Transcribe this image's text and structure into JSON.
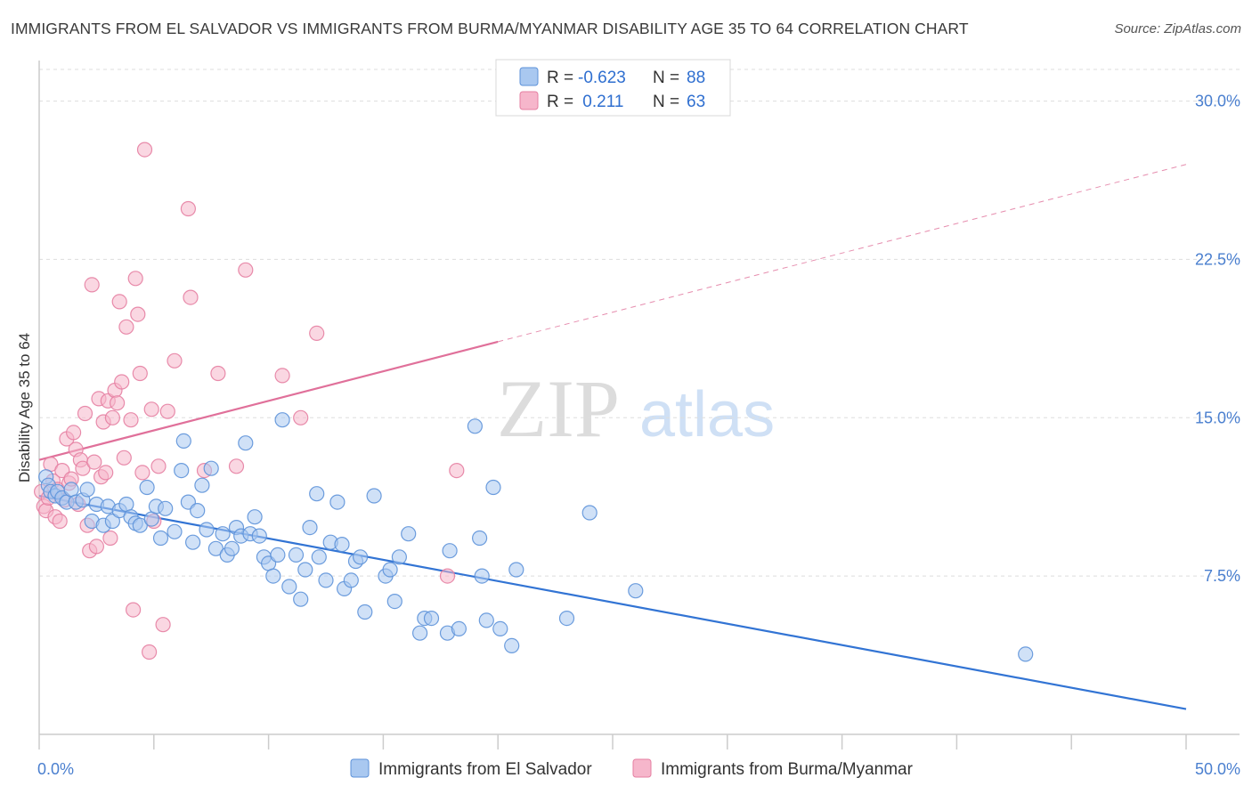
{
  "title": "IMMIGRANTS FROM EL SALVADOR VS IMMIGRANTS FROM BURMA/MYANMAR DISABILITY AGE 35 TO 64 CORRELATION CHART",
  "source": "Source: ZipAtlas.com",
  "watermark": {
    "zip": "ZIP",
    "atlas": "atlas"
  },
  "legend": {
    "rows": [
      {
        "r_label": "R =",
        "r_value": "-0.623",
        "n_label": "N =",
        "n_value": "88"
      },
      {
        "r_label": "R =",
        "r_value": " 0.211",
        "n_label": "N =",
        "n_value": "63"
      }
    ]
  },
  "colors": {
    "blue_fill": "#a9c8f0",
    "blue_stroke": "#5d92d9",
    "blue_line": "#3274d4",
    "pink_fill": "#f6b6cb",
    "pink_stroke": "#e57fa2",
    "pink_line": "#e0709a",
    "tick_label": "#4a7fcf",
    "grid": "#dddddd"
  },
  "chart_data": {
    "type": "scatter",
    "ylabel": "Disability Age 35 to 64",
    "xlim": [
      0,
      50
    ],
    "ylim": [
      0,
      31.5
    ],
    "x_tick_labels": [
      "0.0%",
      "50.0%"
    ],
    "y_ticks": [
      7.5,
      15.0,
      22.5,
      30.0
    ],
    "y_tick_labels": [
      "7.5%",
      "15.0%",
      "22.5%",
      "30.0%"
    ],
    "grid": true,
    "legend_position": "top-center",
    "series": [
      {
        "name": "Immigrants from El Salvador",
        "color": "#a9c8f0",
        "trend": {
          "x0": 0,
          "y0": 11.3,
          "x1": 50,
          "y1": 1.2,
          "dashed_from": null
        },
        "points": [
          [
            0.3,
            12.2
          ],
          [
            0.4,
            11.8
          ],
          [
            0.5,
            11.5
          ],
          [
            0.7,
            11.3
          ],
          [
            0.8,
            11.5
          ],
          [
            1.0,
            11.2
          ],
          [
            1.2,
            11.0
          ],
          [
            1.4,
            11.6
          ],
          [
            1.6,
            11.0
          ],
          [
            1.9,
            11.1
          ],
          [
            2.1,
            11.6
          ],
          [
            2.3,
            10.1
          ],
          [
            2.5,
            10.9
          ],
          [
            2.8,
            9.9
          ],
          [
            3.0,
            10.8
          ],
          [
            3.2,
            10.1
          ],
          [
            3.5,
            10.6
          ],
          [
            3.8,
            10.9
          ],
          [
            4.0,
            10.3
          ],
          [
            4.2,
            10.0
          ],
          [
            4.4,
            9.9
          ],
          [
            4.7,
            11.7
          ],
          [
            4.9,
            10.2
          ],
          [
            5.1,
            10.8
          ],
          [
            5.3,
            9.3
          ],
          [
            5.5,
            10.7
          ],
          [
            5.9,
            9.6
          ],
          [
            6.2,
            12.5
          ],
          [
            6.3,
            13.9
          ],
          [
            6.5,
            11.0
          ],
          [
            6.7,
            9.1
          ],
          [
            6.9,
            10.6
          ],
          [
            7.1,
            11.8
          ],
          [
            7.3,
            9.7
          ],
          [
            7.5,
            12.6
          ],
          [
            7.7,
            8.8
          ],
          [
            8.0,
            9.5
          ],
          [
            8.2,
            8.5
          ],
          [
            8.4,
            8.8
          ],
          [
            8.6,
            9.8
          ],
          [
            8.8,
            9.4
          ],
          [
            9.0,
            13.8
          ],
          [
            9.2,
            9.5
          ],
          [
            9.4,
            10.3
          ],
          [
            9.6,
            9.4
          ],
          [
            9.8,
            8.4
          ],
          [
            10.0,
            8.1
          ],
          [
            10.2,
            7.5
          ],
          [
            10.4,
            8.5
          ],
          [
            10.6,
            14.9
          ],
          [
            10.9,
            7.0
          ],
          [
            11.2,
            8.5
          ],
          [
            11.4,
            6.4
          ],
          [
            11.6,
            7.8
          ],
          [
            11.8,
            9.8
          ],
          [
            12.1,
            11.4
          ],
          [
            12.2,
            8.4
          ],
          [
            12.5,
            7.3
          ],
          [
            12.7,
            9.1
          ],
          [
            13.0,
            11.0
          ],
          [
            13.2,
            9.0
          ],
          [
            13.3,
            6.9
          ],
          [
            13.6,
            7.3
          ],
          [
            13.8,
            8.2
          ],
          [
            14.0,
            8.4
          ],
          [
            14.2,
            5.8
          ],
          [
            14.6,
            11.3
          ],
          [
            15.1,
            7.5
          ],
          [
            15.3,
            7.8
          ],
          [
            15.5,
            6.3
          ],
          [
            15.7,
            8.4
          ],
          [
            16.1,
            9.5
          ],
          [
            16.6,
            4.8
          ],
          [
            16.8,
            5.5
          ],
          [
            17.1,
            5.5
          ],
          [
            17.8,
            4.8
          ],
          [
            17.9,
            8.7
          ],
          [
            18.3,
            5.0
          ],
          [
            19.0,
            14.6
          ],
          [
            19.2,
            9.3
          ],
          [
            19.3,
            7.5
          ],
          [
            19.5,
            5.4
          ],
          [
            19.8,
            11.7
          ],
          [
            20.1,
            5.0
          ],
          [
            20.6,
            4.2
          ],
          [
            20.8,
            7.8
          ],
          [
            23.0,
            5.5
          ],
          [
            24.0,
            10.5
          ],
          [
            26.0,
            6.8
          ],
          [
            43.0,
            3.8
          ]
        ]
      },
      {
        "name": "Immigrants from Burma/Myanmar",
        "color": "#f6b6cb",
        "trend": {
          "x0": 0,
          "y0": 13.0,
          "x1": 50,
          "y1": 27.0,
          "dashed_from": 20
        },
        "points": [
          [
            0.1,
            11.5
          ],
          [
            0.2,
            10.8
          ],
          [
            0.3,
            10.6
          ],
          [
            0.4,
            11.2
          ],
          [
            0.5,
            12.8
          ],
          [
            0.6,
            12.0
          ],
          [
            0.7,
            10.3
          ],
          [
            0.8,
            11.6
          ],
          [
            0.9,
            10.1
          ],
          [
            1.0,
            12.5
          ],
          [
            1.1,
            11.1
          ],
          [
            1.2,
            14.0
          ],
          [
            1.3,
            11.9
          ],
          [
            1.4,
            12.1
          ],
          [
            1.5,
            14.3
          ],
          [
            1.6,
            13.5
          ],
          [
            1.7,
            10.9
          ],
          [
            1.8,
            13.0
          ],
          [
            1.9,
            12.6
          ],
          [
            2.0,
            15.2
          ],
          [
            2.1,
            9.9
          ],
          [
            2.2,
            8.7
          ],
          [
            2.3,
            21.3
          ],
          [
            2.4,
            12.9
          ],
          [
            2.5,
            8.9
          ],
          [
            2.6,
            15.9
          ],
          [
            2.7,
            12.2
          ],
          [
            2.8,
            14.8
          ],
          [
            2.9,
            12.4
          ],
          [
            3.0,
            15.8
          ],
          [
            3.1,
            9.3
          ],
          [
            3.2,
            15.0
          ],
          [
            3.3,
            16.3
          ],
          [
            3.4,
            15.7
          ],
          [
            3.5,
            20.5
          ],
          [
            3.6,
            16.7
          ],
          [
            3.7,
            13.1
          ],
          [
            3.8,
            19.3
          ],
          [
            4.0,
            14.9
          ],
          [
            4.1,
            5.9
          ],
          [
            4.2,
            21.6
          ],
          [
            4.3,
            19.9
          ],
          [
            4.4,
            17.1
          ],
          [
            4.5,
            12.4
          ],
          [
            4.6,
            27.7
          ],
          [
            4.8,
            3.9
          ],
          [
            4.9,
            15.4
          ],
          [
            5.0,
            10.1
          ],
          [
            5.2,
            12.7
          ],
          [
            5.4,
            5.2
          ],
          [
            5.6,
            15.3
          ],
          [
            5.9,
            17.7
          ],
          [
            6.5,
            24.9
          ],
          [
            6.6,
            20.7
          ],
          [
            7.2,
            12.5
          ],
          [
            7.8,
            17.1
          ],
          [
            8.6,
            12.7
          ],
          [
            9.0,
            22.0
          ],
          [
            10.6,
            17.0
          ],
          [
            11.4,
            15.0
          ],
          [
            12.1,
            19.0
          ],
          [
            17.8,
            7.5
          ],
          [
            18.2,
            12.5
          ]
        ]
      }
    ]
  }
}
